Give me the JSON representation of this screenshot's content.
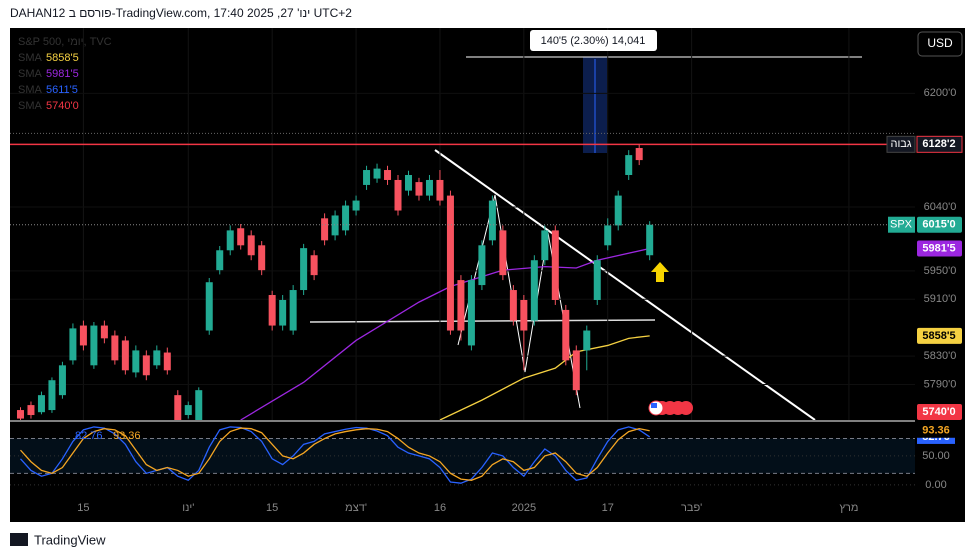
{
  "header": "DAHAN12 פורסם ב-TradingView.com, ינו' 27, 2025 17:40 UTC+2",
  "brand": "TradingView",
  "currency": "USD",
  "chart_data": {
    "type": "candlestick",
    "title": "S&P 500, יומי, TVC",
    "x": [
      -6,
      -5,
      -4,
      -3,
      -2,
      -1,
      0,
      1,
      2,
      3,
      4,
      5,
      6,
      7,
      8,
      9,
      10,
      11,
      12,
      13,
      14,
      15,
      16,
      17,
      18,
      19,
      20,
      21,
      22,
      23,
      24,
      25,
      26,
      27,
      28,
      29,
      30,
      31,
      32,
      33,
      34,
      35,
      36,
      37,
      38,
      39,
      40,
      41,
      42,
      43,
      44,
      45,
      46,
      47,
      48,
      49,
      50,
      51,
      52,
      53,
      54
    ],
    "open": [
      5754,
      5761,
      5751,
      5754,
      5775,
      5824,
      5873,
      5817,
      5873,
      5859,
      5852,
      5807,
      5831,
      5817,
      5835,
      5775,
      5747,
      5740,
      5866,
      5951,
      5979,
      6010,
      6000,
      5986,
      5916,
      5873,
      5866,
      5923,
      5972,
      6024,
      6000,
      6007,
      6035,
      6071,
      6080,
      6092,
      6078,
      6063,
      6075,
      6056,
      6078,
      6056,
      5937,
      5845,
      5930,
      5993,
      6007,
      5923,
      5909,
      5880,
      5965,
      6007,
      5895,
      5838,
      5838,
      5909,
      5986,
      6014,
      6085,
      6123,
      5972
    ],
    "high": [
      5758,
      5766,
      5780,
      5800,
      5822,
      5876,
      5880,
      5878,
      5880,
      5866,
      5858,
      5845,
      5838,
      5845,
      5842,
      5782,
      5766,
      5786,
      5940,
      5985,
      6014,
      6016,
      6007,
      5992,
      5922,
      5916,
      5930,
      5988,
      5979,
      6031,
      6035,
      6049,
      6056,
      6098,
      6101,
      6098,
      6085,
      6091,
      6081,
      6085,
      6092,
      6063,
      5944,
      5944,
      5993,
      6056,
      6014,
      5930,
      5916,
      5972,
      6014,
      6014,
      5902,
      5845,
      5873,
      5972,
      6024,
      6063,
      6120,
      6128,
      6020
    ],
    "low": [
      5740,
      5742,
      5748,
      5750,
      5770,
      5818,
      5838,
      5812,
      5848,
      5818,
      5804,
      5800,
      5796,
      5812,
      5804,
      5740,
      5742,
      5740,
      5860,
      5945,
      5972,
      5980,
      5965,
      5944,
      5866,
      5866,
      5860,
      5916,
      5937,
      5986,
      5993,
      6000,
      6028,
      6064,
      6074,
      6071,
      6028,
      6056,
      6049,
      6049,
      6042,
      5860,
      5852,
      5838,
      5923,
      5986,
      5937,
      5873,
      5810,
      5873,
      5958,
      5902,
      5817,
      5775,
      5810,
      5902,
      5979,
      6007,
      6078,
      6099,
      5965
    ],
    "close": [
      5742,
      5747,
      5775,
      5796,
      5817,
      5869,
      5845,
      5873,
      5855,
      5824,
      5810,
      5838,
      5803,
      5838,
      5810,
      5740,
      5761,
      5782,
      5934,
      5979,
      6007,
      5986,
      5972,
      5951,
      5873,
      5909,
      5923,
      5982,
      5944,
      5993,
      6028,
      6042,
      6049,
      6092,
      6094,
      6078,
      6035,
      6085,
      6056,
      6078,
      6049,
      5866,
      5866,
      5937,
      5986,
      6049,
      5944,
      5880,
      5866,
      5965,
      6007,
      5909,
      5824,
      5782,
      5866,
      5965,
      6014,
      6056,
      6113,
      6106,
      6015
    ],
    "up_color": "#22ab94",
    "down_color": "#f7525f",
    "xlim": [
      -7,
      79.3
    ],
    "xticks": [
      {
        "value": 0,
        "label": "15"
      },
      {
        "value": 10,
        "label": "ינו'"
      },
      {
        "value": 18,
        "label": "15"
      },
      {
        "value": 26,
        "label": "דצמ'"
      },
      {
        "value": 34,
        "label": "16"
      },
      {
        "value": 42,
        "label": "2025"
      },
      {
        "value": 50,
        "label": "17"
      },
      {
        "value": 58,
        "label": "פבר'"
      },
      {
        "value": 73,
        "label": "מרץ"
      }
    ],
    "ylim": [
      5740,
      6292
    ],
    "yticks": [
      {
        "value": 6200,
        "label": "6200'0"
      },
      {
        "value": 6040,
        "label": "6040'0"
      },
      {
        "value": 5950,
        "label": "5950'0"
      },
      {
        "value": 5910,
        "label": "5910'0"
      },
      {
        "value": 5830,
        "label": "5830'0"
      },
      {
        "value": 5790,
        "label": "5790'0"
      }
    ],
    "last_label": "SPX",
    "last_value_label": "6015'0",
    "high_line": {
      "label": "גבוה",
      "value": 6128.2,
      "value_label": "6128'2",
      "color": "#f23645"
    },
    "measure": "140'5 (2.30%) 14,041",
    "sma": [
      {
        "name": "SMA",
        "color": "#f5d142",
        "last": 5858.5,
        "last_label": "5858'5",
        "x": [
          34,
          38,
          42,
          45,
          47,
          50,
          52,
          54
        ],
        "values": [
          5740,
          5768,
          5799,
          5813,
          5836,
          5845,
          5855,
          5858.5
        ]
      },
      {
        "name": "SMA",
        "color": "#9c27e0",
        "last": 5981.5,
        "last_label": "5981'5",
        "x": [
          15,
          21,
          26,
          32,
          35,
          40,
          44,
          47,
          49,
          54
        ],
        "values": [
          5740,
          5793,
          5852,
          5906,
          5928,
          5951,
          5956,
          5954,
          5965,
          5981.5
        ]
      },
      {
        "name": "SMA",
        "color": "#2962ff",
        "last": 5611.5,
        "last_label": "5611'5"
      },
      {
        "name": "SMA",
        "color": "#f23645",
        "last": 5740,
        "last_label": "5740'0"
      }
    ],
    "oscillator": {
      "ylim": [
        -26,
        108.5
      ],
      "yticks": [
        {
          "value": 50,
          "label": "50.00"
        },
        {
          "value": 0,
          "label": "0.00"
        }
      ],
      "bands": [
        80,
        20
      ],
      "series": [
        {
          "color": "#2962ff",
          "values": [
            45,
            25,
            15,
            20,
            45,
            75,
            95,
            100,
            98,
            88,
            70,
            40,
            20,
            25,
            30,
            15,
            8,
            25,
            65,
            95,
            100,
            99,
            92,
            75,
            45,
            35,
            50,
            70,
            75,
            88,
            92,
            96,
            99,
            98,
            93,
            85,
            65,
            55,
            50,
            45,
            30,
            5,
            3,
            10,
            30,
            55,
            50,
            30,
            15,
            40,
            62,
            50,
            25,
            8,
            12,
            45,
            75,
            95,
            100,
            95,
            82.76
          ]
        },
        {
          "color": "#f5a623",
          "values": [
            60,
            40,
            25,
            20,
            30,
            55,
            80,
            92,
            97,
            95,
            85,
            60,
            35,
            25,
            30,
            25,
            15,
            20,
            45,
            75,
            92,
            98,
            97,
            90,
            70,
            50,
            45,
            55,
            70,
            80,
            88,
            92,
            95,
            97,
            96,
            92,
            80,
            65,
            55,
            50,
            40,
            20,
            10,
            8,
            15,
            35,
            45,
            40,
            25,
            30,
            50,
            55,
            40,
            20,
            15,
            30,
            55,
            78,
            92,
            97,
            93.36
          ]
        }
      ]
    }
  }
}
